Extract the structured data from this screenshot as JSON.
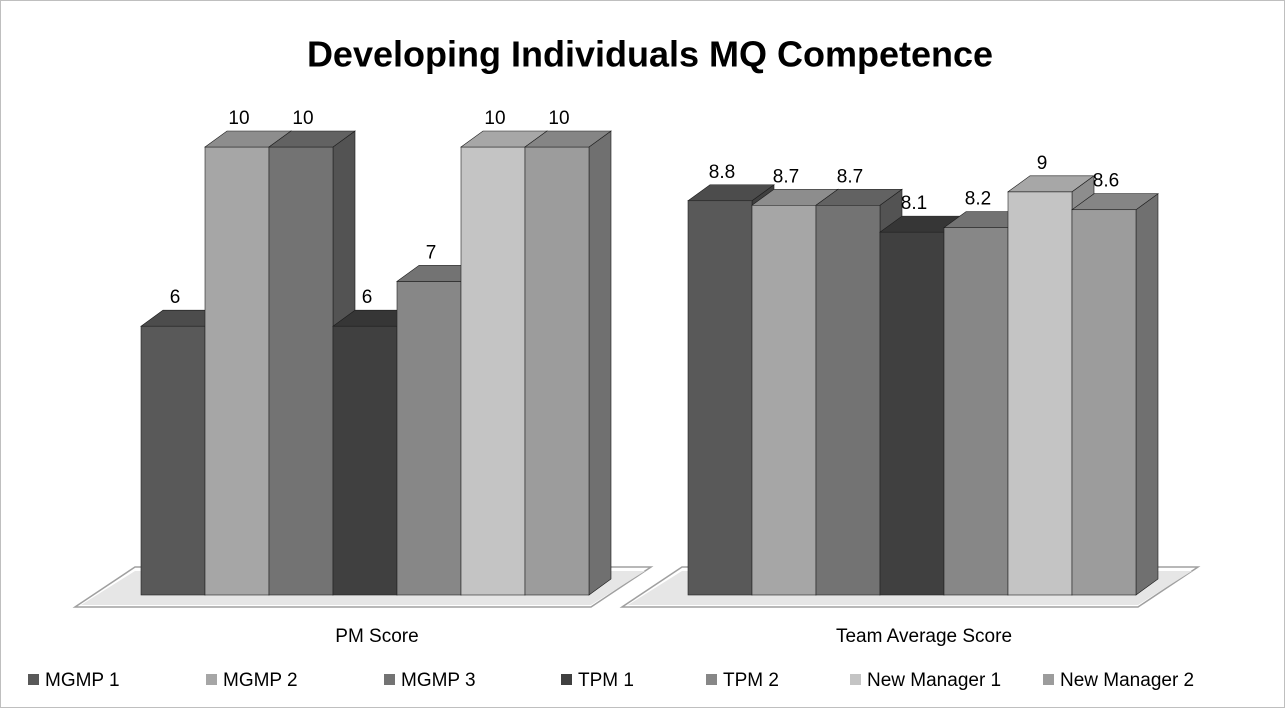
{
  "chart_data": {
    "type": "bar3d",
    "title": "Developing Individuals MQ Competence",
    "categories": [
      "PM Score",
      "Team Average Score"
    ],
    "ylim": [
      0,
      10
    ],
    "series": [
      {
        "name": "MGMP 1",
        "color": "#595959",
        "values": [
          6,
          8.8
        ]
      },
      {
        "name": "MGMP 2",
        "color": "#a6a6a6",
        "values": [
          10,
          8.7
        ]
      },
      {
        "name": "MGMP 3",
        "color": "#737373",
        "values": [
          10,
          8.7
        ]
      },
      {
        "name": "TPM 1",
        "color": "#404040",
        "values": [
          6,
          8.1
        ]
      },
      {
        "name": "TPM 2",
        "color": "#878787",
        "values": [
          7,
          8.2
        ]
      },
      {
        "name": "New Manager  1",
        "color": "#c4c4c4",
        "values": [
          10,
          9
        ]
      },
      {
        "name": "New Manager  2",
        "color": "#9c9c9c",
        "values": [
          10,
          8.6
        ]
      }
    ],
    "legend": "bottom"
  }
}
